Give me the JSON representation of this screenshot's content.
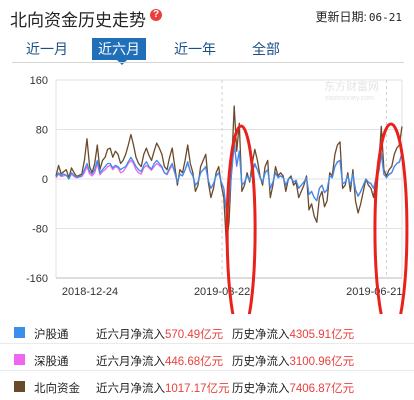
{
  "header": {
    "title": "北向资金历史走势",
    "help_icon": "question-icon",
    "update_label": "更新日期:",
    "update_date": "06-21"
  },
  "tabs": [
    {
      "label": "近一月",
      "active": false
    },
    {
      "label": "近六月",
      "active": true
    },
    {
      "label": "近一年",
      "active": false
    },
    {
      "label": "全部",
      "active": false
    }
  ],
  "watermark": {
    "cn": "东方财富网",
    "en": "eastmoney.com"
  },
  "chart_data": {
    "type": "line",
    "x_tick_labels": [
      "2018-12-24",
      "2019-03-22",
      "2019-06-21"
    ],
    "ylim": [
      -160,
      160
    ],
    "yticks": [
      160,
      80,
      0,
      -80,
      -160
    ],
    "grid": true,
    "series": [
      {
        "name": "北向资金",
        "color": "#6b4a2b",
        "values": [
          5,
          22,
          8,
          12,
          15,
          2,
          18,
          10,
          4,
          6,
          8,
          30,
          65,
          20,
          10,
          25,
          55,
          15,
          30,
          35,
          48,
          50,
          35,
          45,
          40,
          25,
          30,
          40,
          55,
          72,
          55,
          35,
          25,
          20,
          40,
          50,
          38,
          30,
          45,
          58,
          50,
          40,
          20,
          15,
          35,
          50,
          20,
          -10,
          15,
          10,
          30,
          55,
          25,
          10,
          -20,
          -10,
          20,
          30,
          40,
          -5,
          -30,
          -15,
          10,
          20,
          -10,
          -30,
          -105,
          -70,
          20,
          118,
          45,
          90,
          -20,
          -10,
          10,
          -5,
          25,
          48,
          30,
          5,
          -10,
          20,
          30,
          -30,
          -10,
          20,
          5,
          10,
          5,
          -20,
          0,
          5,
          -10,
          -5,
          -30,
          -20,
          -10,
          5,
          -50,
          -40,
          -60,
          -70,
          -30,
          -20,
          -45,
          -35,
          10,
          5,
          40,
          55,
          60,
          -15,
          -10,
          10,
          -20,
          15,
          -35,
          -55,
          -40,
          -20,
          0,
          -10,
          -15,
          -30,
          5,
          25,
          85,
          15,
          5,
          15,
          20,
          40,
          50,
          55,
          85
        ]
      },
      {
        "name": "沪股通",
        "color": "#3b8fe8",
        "values": [
          3,
          10,
          5,
          8,
          6,
          0,
          10,
          6,
          3,
          4,
          5,
          15,
          25,
          12,
          8,
          15,
          30,
          10,
          15,
          20,
          25,
          25,
          18,
          22,
          20,
          15,
          18,
          20,
          28,
          35,
          28,
          20,
          15,
          12,
          22,
          28,
          20,
          16,
          25,
          30,
          25,
          20,
          10,
          8,
          18,
          25,
          10,
          -5,
          8,
          5,
          15,
          28,
          12,
          5,
          -10,
          -5,
          10,
          15,
          20,
          -2,
          -15,
          -8,
          5,
          10,
          -5,
          -15,
          -55,
          -35,
          10,
          60,
          22,
          45,
          -10,
          -5,
          5,
          -2,
          12,
          25,
          15,
          3,
          -5,
          10,
          15,
          -15,
          -5,
          10,
          2,
          5,
          2,
          -10,
          0,
          2,
          -5,
          -2,
          -15,
          -10,
          -5,
          2,
          -25,
          -20,
          -30,
          -35,
          -15,
          -10,
          -22,
          -18,
          5,
          2,
          20,
          28,
          30,
          -8,
          -5,
          5,
          -10,
          8,
          -18,
          -28,
          -20,
          -10,
          0,
          -5,
          -8,
          -15,
          2,
          12,
          42,
          8,
          2,
          8,
          10,
          20,
          25,
          28,
          42
        ]
      },
      {
        "name": "深股通",
        "color": "#f066f0",
        "values": [
          2,
          8,
          4,
          5,
          6,
          1,
          8,
          4,
          2,
          3,
          4,
          10,
          20,
          8,
          5,
          10,
          25,
          7,
          12,
          15,
          20,
          22,
          15,
          20,
          18,
          10,
          12,
          18,
          25,
          30,
          25,
          15,
          10,
          8,
          18,
          22,
          18,
          14,
          20,
          25,
          22,
          18,
          10,
          7,
          15,
          22,
          10,
          -5,
          7,
          5,
          15,
          25,
          12,
          5,
          -10,
          -5,
          10,
          15,
          18,
          -3,
          -15,
          -7,
          5,
          10,
          -5,
          -15,
          -50,
          -35,
          10,
          55,
          20,
          45,
          -10,
          -5,
          5,
          -2,
          12,
          22,
          15,
          2,
          -5,
          10,
          15,
          -15,
          -5,
          10,
          3,
          5,
          3,
          -10,
          0,
          3,
          -5,
          -3,
          -15,
          -10,
          -5,
          3,
          -25,
          -20,
          -30,
          -35,
          -15,
          -10,
          -22,
          -17,
          5,
          3,
          20,
          27,
          30,
          -7,
          -5,
          5,
          -10,
          7,
          -17,
          -27,
          -20,
          -10,
          0,
          -5,
          -7,
          -15,
          3,
          12,
          40,
          7,
          3,
          7,
          10,
          20,
          25,
          27,
          40
        ]
      }
    ]
  },
  "legend": [
    {
      "name": "沪股通",
      "color": "#3b8fe8",
      "six_label": "近六月净流入",
      "six_value": "570.49亿元",
      "hist_label": "历史净流入",
      "hist_value": "4305.91亿元"
    },
    {
      "name": "深股通",
      "color": "#f066f0",
      "six_label": "近六月净流入",
      "six_value": "446.68亿元",
      "hist_label": "历史净流入",
      "hist_value": "3100.96亿元"
    },
    {
      "name": "北向资金",
      "color": "#6b4a2b",
      "six_label": "近六月净流入",
      "six_value": "1017.17亿元",
      "hist_label": "历史净流入",
      "hist_value": "7406.87亿元"
    }
  ],
  "annotations": {
    "ellipse_color": "#e8221b"
  }
}
